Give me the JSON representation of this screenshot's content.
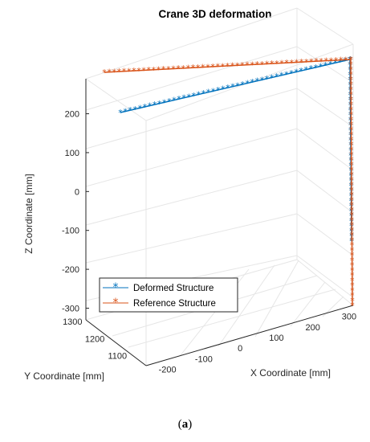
{
  "chart_data": {
    "type": "line",
    "title": "Crane 3D deformation",
    "xlabel": "X Coordinate [mm]",
    "ylabel": "Y Coordinate [mm]",
    "zlabel": "Z Coordinate [mm]",
    "x_ticks": [
      "-200",
      "-100",
      "0",
      "100",
      "200",
      "300"
    ],
    "y_ticks": [
      "1100",
      "1200",
      "1300"
    ],
    "z_ticks": [
      "200",
      "100",
      "0",
      "-100",
      "-200",
      "-300"
    ],
    "xlim": [
      -250,
      320
    ],
    "ylim": [
      1050,
      1320
    ],
    "zlim": [
      -330,
      290
    ],
    "grid": true,
    "legend_position": "lower-left",
    "series": [
      {
        "name": "Deformed Structure",
        "color": "#0072BD",
        "marker": "*",
        "segments": [
          {
            "from": [
              -230,
              1300,
              195
            ],
            "to": [
              300,
              1300,
              270
            ]
          },
          {
            "from": [
              300,
              1300,
              270
            ],
            "to": [
              300,
              1300,
              -300
            ]
          }
        ]
      },
      {
        "name": "Reference Structure",
        "color": "#D95319",
        "marker": "*",
        "segments": [
          {
            "from": [
              -230,
              1300,
              290
            ],
            "to": [
              300,
              1300,
              290
            ]
          },
          {
            "from": [
              300,
              1300,
              290
            ],
            "to": [
              300,
              1300,
              -330
            ]
          }
        ]
      }
    ]
  },
  "caption": "(a)"
}
